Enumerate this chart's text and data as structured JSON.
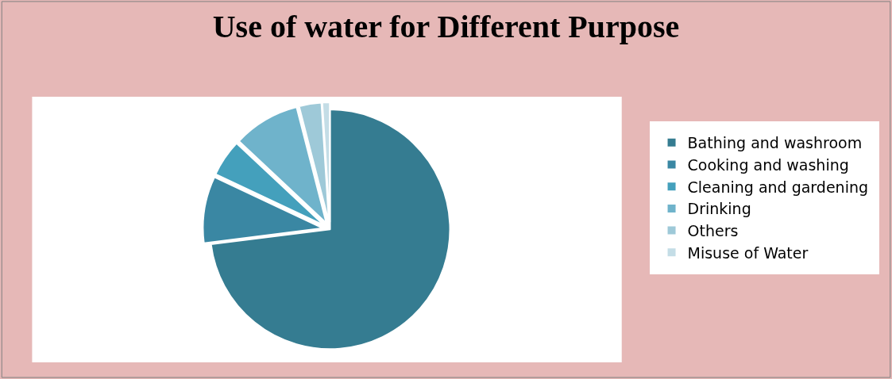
{
  "chart_data": {
    "type": "pie",
    "title": "Use of water for Different Purpose",
    "categories": [
      "Bathing and washroom",
      "Cooking and washing",
      "Cleaning and gardening",
      "Drinking",
      "Others",
      "Misuse of Water"
    ],
    "values": [
      73,
      9,
      5,
      9,
      3,
      1
    ],
    "colors": [
      "#357c91",
      "#3a87a3",
      "#44a0bc",
      "#6fb3cb",
      "#9ec9d8",
      "#c4dde6"
    ],
    "legend": "right"
  }
}
